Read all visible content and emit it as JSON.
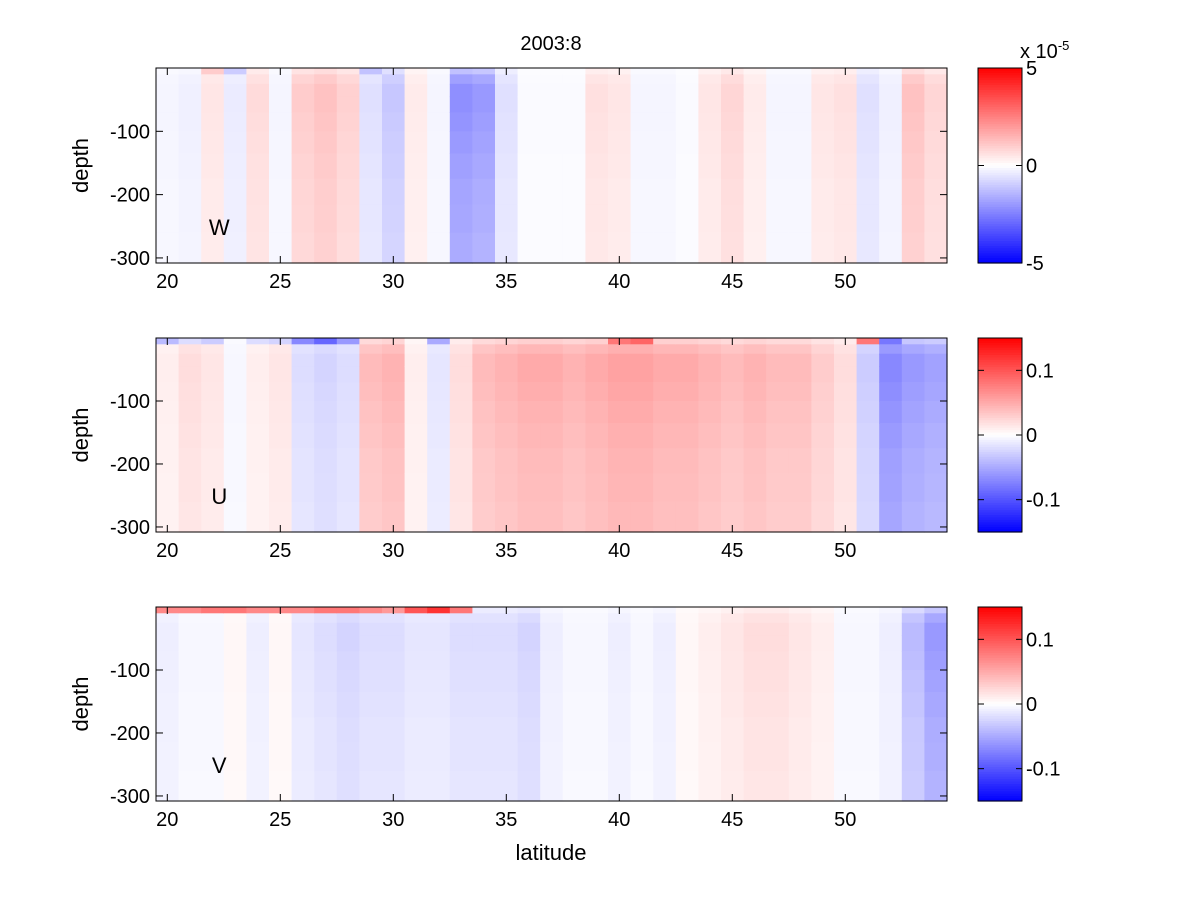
{
  "figure": {
    "title": "2003:8",
    "xlabel": "latitude"
  },
  "chart_data": [
    {
      "type": "heatmap",
      "panel_label": "W",
      "ylabel": "depth",
      "xlim": [
        19.5,
        54.5
      ],
      "ylim": [
        -308,
        0
      ],
      "x_ticks": [
        20,
        25,
        30,
        35,
        40,
        45,
        50
      ],
      "y_ticks": [
        -100,
        -200,
        -300
      ],
      "x_edges": [
        19.5,
        20.5,
        21.5,
        22.5,
        23.5,
        24.5,
        25.5,
        26.5,
        27.5,
        28.5,
        29.5,
        30.5,
        31.5,
        32.5,
        33.5,
        34.5,
        35.5,
        36.5,
        37.5,
        38.5,
        39.5,
        40.5,
        41.5,
        42.5,
        43.5,
        44.5,
        45.5,
        46.5,
        47.5,
        48.5,
        49.5,
        50.5,
        51.5,
        52.5,
        53.5,
        54.5
      ],
      "y_edges": [
        0,
        -10,
        -25,
        -45,
        -70,
        -100,
        -135,
        -175,
        -215,
        -260,
        -308
      ],
      "clim": [
        -5,
        5
      ],
      "colorbar_ticks": [
        "5",
        "0",
        "-5"
      ],
      "colorbar_ticks_values": [
        5,
        0,
        -5
      ],
      "colorbar_exponent": "x 10",
      "colorbar_exponent_power": "-5",
      "column_values": [
        -0.2,
        -0.3,
        0.5,
        -0.4,
        0.7,
        -0.2,
        1.0,
        1.2,
        0.9,
        -0.6,
        -1.1,
        0.4,
        -0.2,
        -2.2,
        -2.0,
        -0.6,
        -0.1,
        -0.1,
        -0.1,
        0.6,
        0.5,
        -0.2,
        -0.2,
        -0.1,
        0.5,
        0.8,
        0.4,
        -0.2,
        -0.2,
        0.5,
        0.6,
        -0.6,
        -0.3,
        1.2,
        0.8
      ],
      "surface_override": {
        "2": 1.0,
        "3": -1.0,
        "9": -1.2
      }
    },
    {
      "type": "heatmap",
      "panel_label": "U",
      "ylabel": "depth",
      "xlim": [
        19.5,
        54.5
      ],
      "ylim": [
        -308,
        0
      ],
      "x_ticks": [
        20,
        25,
        30,
        35,
        40,
        45,
        50
      ],
      "y_ticks": [
        -100,
        -200,
        -300
      ],
      "x_edges": [
        19.5,
        20.5,
        21.5,
        22.5,
        23.5,
        24.5,
        25.5,
        26.5,
        27.5,
        28.5,
        29.5,
        30.5,
        31.5,
        32.5,
        33.5,
        34.5,
        35.5,
        36.5,
        37.5,
        38.5,
        39.5,
        40.5,
        41.5,
        42.5,
        43.5,
        44.5,
        45.5,
        46.5,
        47.5,
        48.5,
        49.5,
        50.5,
        51.5,
        52.5,
        53.5,
        54.5
      ],
      "y_edges": [
        0,
        -10,
        -25,
        -45,
        -70,
        -100,
        -135,
        -175,
        -215,
        -260,
        -308
      ],
      "clim": [
        -0.15,
        0.15
      ],
      "colorbar_ticks": [
        "0.1",
        "0",
        "-0.1"
      ],
      "colorbar_ticks_values": [
        0.1,
        0,
        -0.1
      ],
      "column_values": [
        0.01,
        0.02,
        0.015,
        -0.005,
        0.01,
        0.015,
        -0.02,
        -0.025,
        -0.02,
        0.04,
        0.045,
        0.01,
        -0.015,
        0.02,
        0.04,
        0.045,
        0.05,
        0.05,
        0.045,
        0.05,
        0.055,
        0.055,
        0.05,
        0.05,
        0.045,
        0.04,
        0.045,
        0.04,
        0.04,
        0.03,
        0.02,
        -0.03,
        -0.07,
        -0.06,
        -0.055
      ],
      "surface_override": {
        "0": -0.04,
        "1": -0.02,
        "2": -0.03,
        "4": -0.02,
        "5": -0.025,
        "6": -0.07,
        "7": -0.09,
        "8": -0.06,
        "12": -0.05,
        "20": 0.08,
        "21": 0.09,
        "31": 0.08,
        "32": -0.08
      }
    },
    {
      "type": "heatmap",
      "panel_label": "V",
      "ylabel": "depth",
      "xlim": [
        19.5,
        54.5
      ],
      "ylim": [
        -308,
        0
      ],
      "x_ticks": [
        20,
        25,
        30,
        35,
        40,
        45,
        50
      ],
      "y_ticks": [
        -100,
        -200,
        -300
      ],
      "x_edges": [
        19.5,
        20.5,
        21.5,
        22.5,
        23.5,
        24.5,
        25.5,
        26.5,
        27.5,
        28.5,
        29.5,
        30.5,
        31.5,
        32.5,
        33.5,
        34.5,
        35.5,
        36.5,
        37.5,
        38.5,
        39.5,
        40.5,
        41.5,
        42.5,
        43.5,
        44.5,
        45.5,
        46.5,
        47.5,
        48.5,
        49.5,
        50.5,
        51.5,
        52.5,
        53.5,
        54.5
      ],
      "y_edges": [
        0,
        -10,
        -25,
        -45,
        -70,
        -100,
        -135,
        -175,
        -215,
        -260,
        -308
      ],
      "clim": [
        -0.15,
        0.15
      ],
      "colorbar_ticks": [
        "0.1",
        "0",
        "-0.1"
      ],
      "colorbar_ticks_values": [
        0.1,
        0,
        -0.1
      ],
      "column_values": [
        -0.01,
        -0.005,
        -0.005,
        0.005,
        -0.01,
        0.005,
        -0.015,
        -0.02,
        -0.025,
        -0.02,
        -0.02,
        -0.015,
        -0.015,
        -0.02,
        -0.02,
        -0.02,
        -0.025,
        -0.01,
        -0.005,
        -0.005,
        -0.01,
        -0.005,
        -0.01,
        0.005,
        0.01,
        0.015,
        0.02,
        0.02,
        0.015,
        0.01,
        -0.005,
        -0.005,
        -0.01,
        -0.04,
        -0.06
      ],
      "surface_override": {
        "0": 0.07,
        "1": 0.07,
        "2": 0.08,
        "3": 0.08,
        "4": 0.07,
        "5": 0.07,
        "6": 0.07,
        "7": 0.08,
        "8": 0.08,
        "9": 0.07,
        "10": 0.06,
        "11": 0.1,
        "12": 0.12,
        "13": 0.08
      }
    }
  ]
}
